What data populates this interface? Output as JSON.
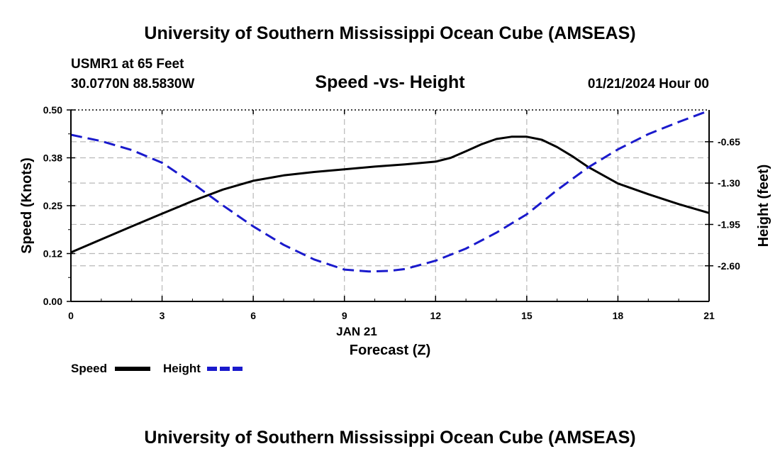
{
  "header": {
    "title": "University of Southern Mississippi Ocean Cube (AMSEAS)",
    "station": "USMR1 at 65 Feet",
    "coords": "30.0770N  88.5830W",
    "subtitle": "Speed -vs- Height",
    "datetime": "01/21/2024 Hour 00"
  },
  "footer": {
    "title": "University of Southern Mississippi Ocean Cube (AMSEAS)"
  },
  "colors": {
    "speed": "#000000",
    "height": "#1a1acc",
    "grid": "#b8b8b8"
  },
  "chart_data": {
    "type": "line",
    "title": "Speed -vs- Height",
    "xlabel": "Forecast (Z)",
    "xlabel_date": "JAN 21",
    "ylabel": "Speed (Knots)",
    "y2label": "Height (feet)",
    "xlim": [
      0,
      21
    ],
    "ylim": [
      0,
      0.5
    ],
    "y2lim": [
      -3.16,
      -0.15
    ],
    "x_ticks": [
      0,
      3,
      6,
      9,
      12,
      15,
      18,
      21
    ],
    "x_tick_labels": [
      "0",
      "3",
      "6",
      "9",
      "12",
      "15",
      "18",
      "21"
    ],
    "y_ticks": [
      0,
      0.125,
      0.25,
      0.375,
      0.5
    ],
    "y_tick_labels": [
      "0.00",
      "0.12",
      "0.25",
      "0.38",
      "0.50"
    ],
    "y2_ticks": [
      -2.6,
      -1.95,
      -1.3,
      -0.65
    ],
    "y2_tick_labels": [
      "-2.60",
      "-1.95",
      "-1.30",
      "-0.65"
    ],
    "grid": true,
    "legend_position": "bottom-left",
    "series": [
      {
        "name": "Speed",
        "axis": "left",
        "style": "solid",
        "x": [
          0,
          1,
          2,
          3,
          4,
          5,
          6,
          7,
          8,
          9,
          10,
          11,
          12,
          12.5,
          13,
          13.5,
          14,
          14.5,
          15,
          15.5,
          16,
          16.5,
          17,
          18,
          19,
          20,
          21
        ],
        "values": [
          0.128,
          0.162,
          0.196,
          0.229,
          0.262,
          0.292,
          0.315,
          0.329,
          0.338,
          0.345,
          0.352,
          0.358,
          0.365,
          0.375,
          0.392,
          0.41,
          0.424,
          0.43,
          0.43,
          0.422,
          0.403,
          0.379,
          0.352,
          0.308,
          0.28,
          0.254,
          0.231
        ]
      },
      {
        "name": "Height",
        "axis": "right",
        "style": "dashed",
        "x": [
          0,
          1,
          2,
          3,
          4,
          5,
          6,
          7,
          8,
          9,
          9.8,
          10.5,
          11,
          12,
          13,
          14,
          15,
          16,
          17,
          18,
          19,
          20,
          21
        ],
        "values": [
          -0.54,
          -0.64,
          -0.78,
          -0.98,
          -1.3,
          -1.65,
          -1.98,
          -2.27,
          -2.5,
          -2.66,
          -2.69,
          -2.68,
          -2.65,
          -2.52,
          -2.33,
          -2.08,
          -1.79,
          -1.41,
          -1.06,
          -0.77,
          -0.53,
          -0.34,
          -0.16
        ]
      }
    ]
  }
}
